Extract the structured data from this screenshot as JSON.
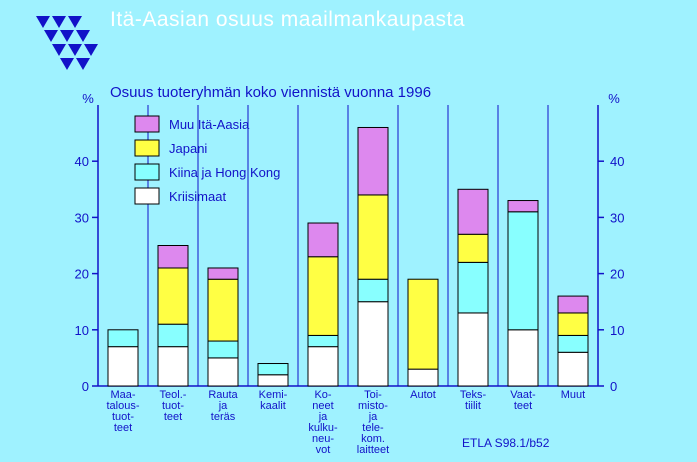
{
  "header": {
    "title": "Itä-Aasian osuus maailmankaupasta",
    "subtitle": "Osuus tuoteryhmän koko viennistä vuonna 1996",
    "source": "ETLA S98.1/b52"
  },
  "colors": {
    "background": "#9ff2ff",
    "axis": "#1212c8",
    "title": "#ffffff",
    "muu": "#dd88ee",
    "japani": "#ffff44",
    "kiina": "#88ffff",
    "kriisimaat": "#ffffff"
  },
  "chart_data": {
    "type": "bar",
    "stacked": true,
    "title": "Itä-Aasian osuus maailmankaupasta",
    "subtitle": "Osuus tuoteryhmän koko viennistä vuonna 1996",
    "ylabel": "%",
    "ylabel_right": "%",
    "ylim": [
      0,
      50
    ],
    "yticks": [
      0,
      10,
      20,
      30,
      40
    ],
    "grid": false,
    "legend_position": "top-left",
    "categories": [
      [
        "Maa-",
        "talous-",
        "tuot-",
        "teet"
      ],
      [
        "Teol.-",
        "tuot-",
        "teet"
      ],
      [
        "Rauta",
        "ja",
        "teräs"
      ],
      [
        "Kemi-",
        "kaalit"
      ],
      [
        "Ko-",
        "neet",
        "ja",
        "kulku-",
        "neu-",
        "vot"
      ],
      [
        "Toi-",
        "misto-",
        "ja",
        "tele-",
        "kom.",
        "laitteet"
      ],
      [
        "Autot"
      ],
      [
        "Teks-",
        "tiilit"
      ],
      [
        "Vaat-",
        "teet"
      ],
      [
        "Muut"
      ]
    ],
    "series": [
      {
        "name": "Kriisimaat",
        "color": "#ffffff",
        "values": [
          7,
          7,
          5,
          2,
          7,
          15,
          3,
          13,
          10,
          6
        ]
      },
      {
        "name": "Kiina ja Hong Kong",
        "color": "#88ffff",
        "values": [
          3,
          4,
          3,
          2,
          2,
          4,
          0,
          9,
          21,
          3
        ]
      },
      {
        "name": "Japani",
        "color": "#ffff44",
        "values": [
          0,
          10,
          11,
          0,
          14,
          15,
          16,
          5,
          0,
          4
        ]
      },
      {
        "name": "Muu Itä-Aasia",
        "color": "#dd88ee",
        "values": [
          0,
          4,
          2,
          0,
          6,
          12,
          0,
          8,
          2,
          3
        ]
      }
    ],
    "legend": [
      "Muu Itä-Aasia",
      "Japani",
      "Kiina ja Hong Kong",
      "Kriisimaat"
    ]
  }
}
